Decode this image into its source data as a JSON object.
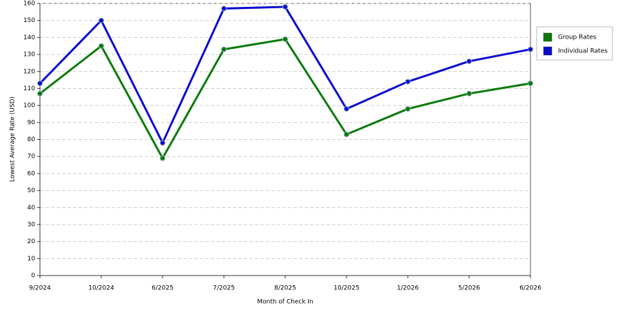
{
  "chart_data": {
    "type": "line",
    "x_label": "Month of Check In",
    "y_label": "Lowest Average Rate (USD)",
    "categories": [
      "9/2024",
      "10/2024",
      "6/2025",
      "7/2025",
      "8/2025",
      "10/2025",
      "1/2026",
      "5/2026",
      "6/2026"
    ],
    "series": [
      {
        "name": "Group Rates",
        "color": "#0a7a0a",
        "values": [
          107,
          135,
          69,
          133,
          139,
          83,
          98,
          107,
          113
        ]
      },
      {
        "name": "Individual Rates",
        "color": "#0a0ad0",
        "values": [
          113,
          150,
          78,
          157,
          158,
          98,
          114,
          126,
          133
        ]
      }
    ],
    "ylim": [
      0,
      160
    ],
    "yticks": [
      0,
      10,
      20,
      30,
      40,
      50,
      60,
      70,
      80,
      90,
      100,
      110,
      120,
      130,
      140,
      150,
      160
    ],
    "grid": true,
    "legend": "right"
  }
}
